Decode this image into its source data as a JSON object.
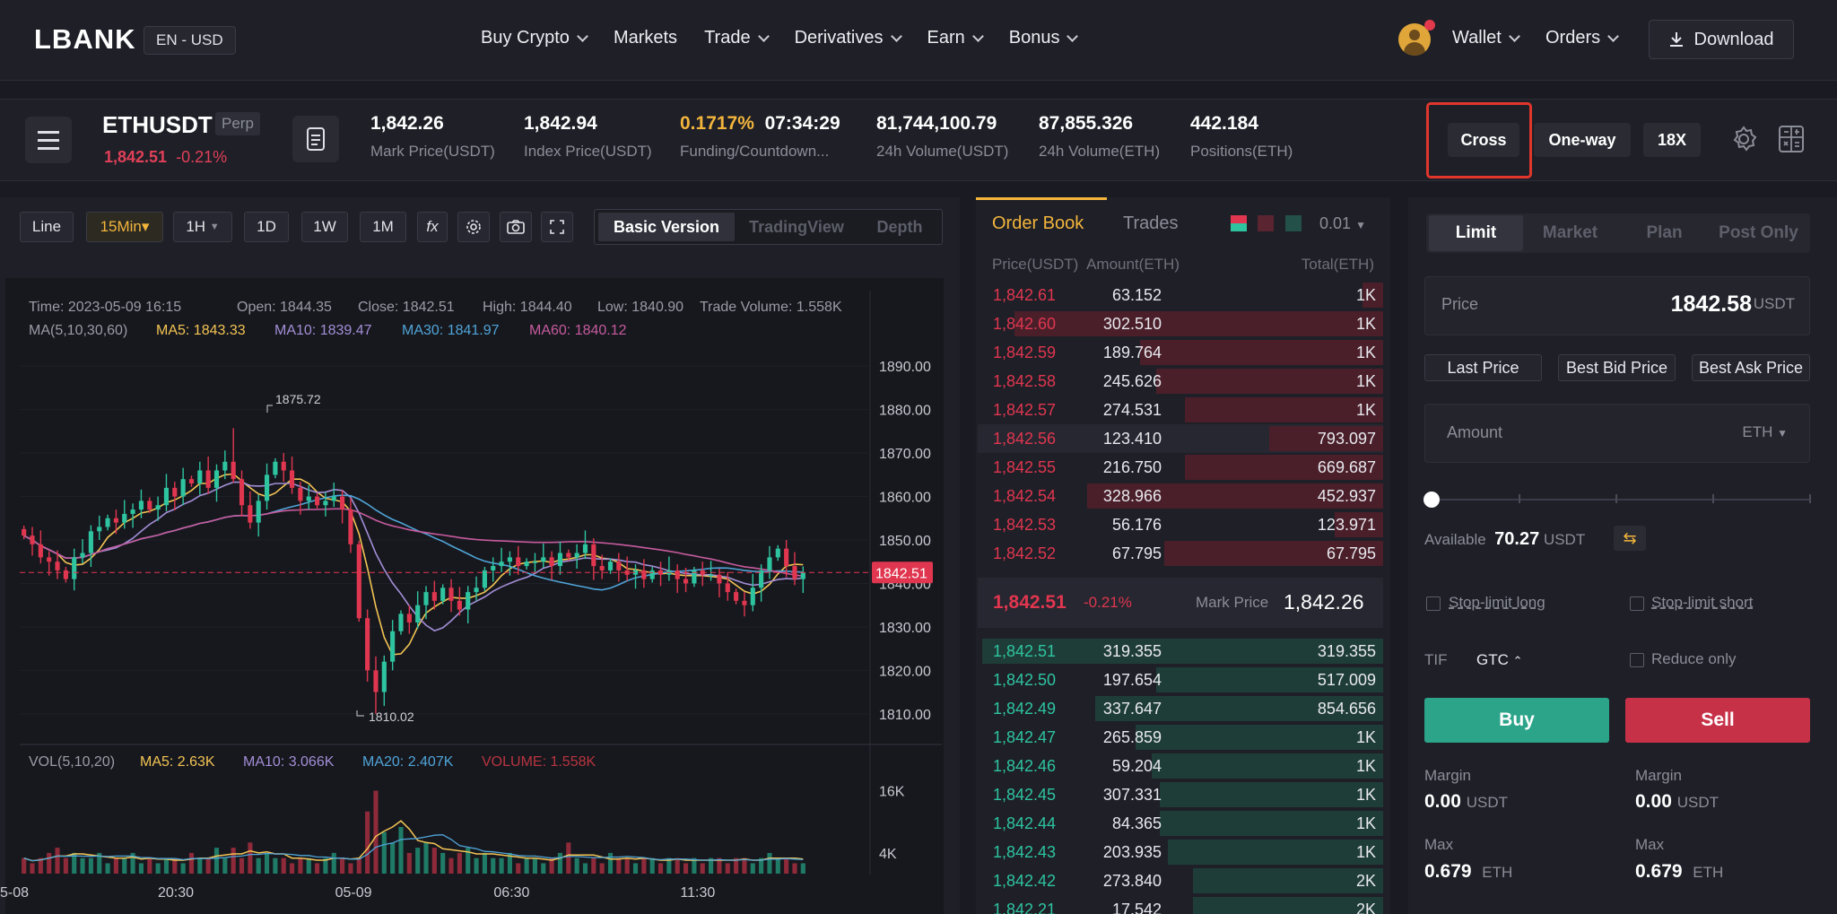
{
  "header": {
    "logo": "LBANK",
    "lang": "EN - USD",
    "menu": [
      "Buy Crypto",
      "Markets",
      "Trade",
      "Derivatives",
      "Earn",
      "Bonus"
    ],
    "wallet": "Wallet",
    "orders": "Orders",
    "download": "Download"
  },
  "ticker": {
    "symbol": "ETHUSDT",
    "badge": "Perp",
    "last_price": "1,842.51",
    "change": "-0.21%",
    "stats": [
      {
        "value": "1,842.26",
        "label": "Mark Price(USDT)"
      },
      {
        "value": "1,842.94",
        "label": "Index Price(USDT)"
      },
      {
        "value": "0.1717%",
        "value2": "07:34:29",
        "label": "Funding/Countdown..."
      },
      {
        "value": "81,744,100.79",
        "label": "24h Volume(USDT)"
      },
      {
        "value": "87,855.326",
        "label": "24h Volume(ETH)"
      },
      {
        "value": "442.184",
        "label": "Positions(ETH)"
      }
    ],
    "margin_mode": "Cross",
    "position_mode": "One-way",
    "leverage": "18X"
  },
  "chart_toolbar": {
    "type": "Line",
    "interval_active": "15Min",
    "intervals": [
      "1H",
      "1D",
      "1W",
      "1M"
    ],
    "fx": "fx",
    "versions": [
      "Basic Version",
      "TradingView",
      "Depth"
    ]
  },
  "chart_info": {
    "time": "Time: 2023-05-09 16:15",
    "open": "Open: 1844.35",
    "close": "Close: 1842.51",
    "high": "High: 1844.40",
    "low": "Low: 1840.90",
    "volume": "Trade Volume: 1.558K",
    "ma_label": "MA(5,10,30,60)",
    "ma5": "MA5: 1843.33",
    "ma10": "MA10: 1839.47",
    "ma30": "MA30: 1841.97",
    "ma60": "MA60: 1840.12",
    "vol_label": "VOL(5,10,20)",
    "vma5": "MA5: 2.63K",
    "vma10": "MA10: 3.066K",
    "vma20": "MA20: 2.407K",
    "vvol": "VOLUME: 1.558K",
    "high_mark": "1875.72",
    "low_mark": "1810.02",
    "current_tag": "1842.51"
  },
  "chart_data": {
    "type": "candlestick",
    "y_ticks": [
      "1890.00",
      "1880.00",
      "1870.00",
      "1860.00",
      "1850.00",
      "1840.00",
      "1830.00",
      "1820.00",
      "1810.00"
    ],
    "ylim": [
      1805,
      1895
    ],
    "vol_ticks": [
      "16K",
      "4K"
    ],
    "x_ticks": [
      "5-08",
      "20:30",
      "05-09",
      "06:30",
      "11:30"
    ],
    "colors": {
      "up": "#2ec4a0",
      "down": "#e0364f",
      "ma5": "#f3c453",
      "ma10": "#a38ed6",
      "ma30": "#4fa4d8",
      "ma60": "#c65b9e"
    },
    "closes": [
      1851,
      1849,
      1846,
      1845,
      1843,
      1841,
      1846,
      1847,
      1852,
      1853,
      1855,
      1854,
      1856,
      1857,
      1859,
      1857,
      1858,
      1862,
      1860,
      1864,
      1863,
      1866,
      1862,
      1866,
      1868,
      1864,
      1858,
      1854,
      1859,
      1865,
      1868,
      1866,
      1862,
      1859,
      1860,
      1858,
      1859,
      1860,
      1857,
      1849,
      1832,
      1820,
      1815,
      1822,
      1829,
      1833,
      1831,
      1835,
      1838,
      1836,
      1839,
      1836,
      1834,
      1838,
      1839,
      1843,
      1844,
      1845,
      1846,
      1844,
      1845,
      1845,
      1846,
      1844,
      1847,
      1846,
      1847,
      1849,
      1844,
      1843,
      1845,
      1843,
      1842,
      1843,
      1841,
      1843,
      1842,
      1843,
      1841,
      1840,
      1843,
      1842,
      1842,
      1840,
      1838,
      1836,
      1835,
      1839,
      1843,
      1846,
      1848,
      1844,
      1841,
      1842.51
    ],
    "volumes": [
      3,
      2,
      3,
      4,
      5,
      3,
      4,
      3,
      3,
      4,
      2,
      3,
      3,
      4,
      2,
      3,
      2,
      3,
      3,
      2,
      4,
      3,
      3,
      5,
      3,
      5,
      3,
      6,
      3,
      4,
      3,
      3,
      2,
      3,
      3,
      2,
      3,
      4,
      3,
      2,
      3,
      12,
      16,
      8,
      6,
      9,
      4,
      5,
      6,
      5,
      4,
      3,
      4,
      5,
      3,
      4,
      3,
      3,
      4,
      2,
      3,
      3,
      2,
      3,
      4,
      6,
      3,
      2,
      3,
      2,
      4,
      3,
      3,
      2,
      3,
      3,
      2,
      3,
      3,
      2,
      3,
      2,
      3,
      3,
      2,
      3,
      3,
      2,
      3,
      4,
      3,
      3,
      2,
      2
    ]
  },
  "orderbook": {
    "tabs": [
      "Order Book",
      "Trades"
    ],
    "precision": "0.01",
    "headers": [
      "Price(USDT)",
      "Amount(ETH)",
      "Total(ETH)"
    ],
    "asks": [
      {
        "price": "1,842.61",
        "amount": "63.152",
        "total": "1K",
        "depth": 0.05
      },
      {
        "price": "1,842.60",
        "amount": "302.510",
        "total": "1K",
        "depth": 0.91
      },
      {
        "price": "1,842.59",
        "amount": "189.764",
        "total": "1K",
        "depth": 0.6
      },
      {
        "price": "1,842.58",
        "amount": "245.626",
        "total": "1K",
        "depth": 0.56
      },
      {
        "price": "1,842.57",
        "amount": "274.531",
        "total": "1K",
        "depth": 0.49
      },
      {
        "price": "1,842.56",
        "amount": "123.410",
        "total": "793.097",
        "depth": 0.28
      },
      {
        "price": "1,842.55",
        "amount": "216.750",
        "total": "669.687",
        "depth": 0.49
      },
      {
        "price": "1,842.54",
        "amount": "328.966",
        "total": "452.937",
        "depth": 0.73
      },
      {
        "price": "1,842.53",
        "amount": "56.176",
        "total": "123.971",
        "depth": 0.12
      },
      {
        "price": "1,842.52",
        "amount": "67.795",
        "total": "67.795",
        "depth": 0.54
      }
    ],
    "last_price": "1,842.51",
    "last_change": "-0.21%",
    "mark_label": "Mark Price",
    "mark_price": "1,842.26",
    "bids": [
      {
        "price": "1,842.51",
        "amount": "319.355",
        "total": "319.355",
        "depth": 0.99
      },
      {
        "price": "1,842.50",
        "amount": "197.654",
        "total": "517.009",
        "depth": 0.56
      },
      {
        "price": "1,842.49",
        "amount": "337.647",
        "total": "854.656",
        "depth": 0.71
      },
      {
        "price": "1,842.47",
        "amount": "265.859",
        "total": "1K",
        "depth": 0.61
      },
      {
        "price": "1,842.46",
        "amount": "59.204",
        "total": "1K",
        "depth": 0.57
      },
      {
        "price": "1,842.45",
        "amount": "307.331",
        "total": "1K",
        "depth": 0.55
      },
      {
        "price": "1,842.44",
        "amount": "84.365",
        "total": "1K",
        "depth": 0.55
      },
      {
        "price": "1,842.43",
        "amount": "203.935",
        "total": "1K",
        "depth": 0.53
      },
      {
        "price": "1,842.42",
        "amount": "273.840",
        "total": "2K",
        "depth": 0.47
      },
      {
        "price": "1,842.21",
        "amount": "17.542",
        "total": "2K",
        "depth": 0.47
      }
    ]
  },
  "trade": {
    "tabs": [
      "Limit",
      "Market",
      "Plan",
      "Post Only"
    ],
    "price_label": "Price",
    "price_value": "1842.58",
    "price_unit": "USDT",
    "price_buttons": [
      "Last Price",
      "Best Bid Price",
      "Best Ask Price"
    ],
    "amount_placeholder": "Amount",
    "amount_unit": "ETH",
    "slider_value": 0,
    "available_label": "Available",
    "available_value": "70.27",
    "available_unit": "USDT",
    "stop_long": "Stop-limit long",
    "stop_short": "Stop-limit short",
    "tif_label": "TIF",
    "tif_value": "GTC",
    "reduce_only": "Reduce only",
    "buy": "Buy",
    "sell": "Sell",
    "margin_label": "Margin",
    "margin_buy": "0.00",
    "margin_sell": "0.00",
    "margin_unit": "USDT",
    "max_label": "Max",
    "max_buy": "0.679",
    "max_sell": "0.679",
    "max_unit": "ETH"
  }
}
